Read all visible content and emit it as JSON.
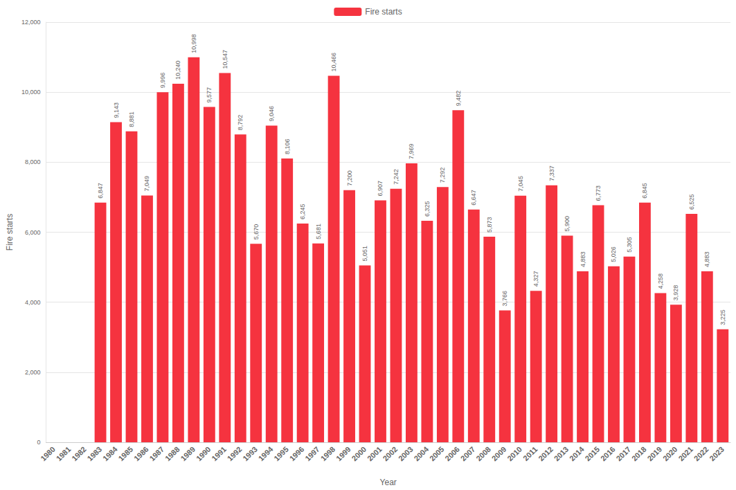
{
  "chart_data": {
    "type": "bar",
    "x_label": "Year",
    "y_label": "Fire starts",
    "categories": [
      "1980",
      "1981",
      "1982",
      "1983",
      "1984",
      "1985",
      "1986",
      "1987",
      "1988",
      "1989",
      "1990",
      "1991",
      "1992",
      "1993",
      "1994",
      "1995",
      "1996",
      "1997",
      "1998",
      "1999",
      "2000",
      "2001",
      "2002",
      "2003",
      "2004",
      "2005",
      "2006",
      "2007",
      "2008",
      "2009",
      "2010",
      "2011",
      "2012",
      "2013",
      "2014",
      "2015",
      "2016",
      "2017",
      "2018",
      "2019",
      "2020",
      "2021",
      "2022",
      "2023"
    ],
    "series": [
      {
        "name": "Fire starts",
        "color": "#f5333f",
        "values": [
          null,
          null,
          null,
          6847,
          9143,
          8881,
          7049,
          9996,
          10240,
          10998,
          9577,
          10547,
          8792,
          5670,
          9046,
          8106,
          6245,
          5681,
          10466,
          7200,
          5051,
          6907,
          7242,
          7969,
          6325,
          7292,
          9482,
          6647,
          5873,
          3766,
          7045,
          4327,
          7337,
          5900,
          4883,
          6773,
          5026,
          5305,
          6845,
          4258,
          3928,
          6525,
          4883,
          3225
        ],
        "value_labels": [
          null,
          null,
          null,
          "6,847",
          "9,143",
          "8,881",
          "7,049",
          "9,996",
          "10,240",
          "10,998",
          "9,577",
          "10,547",
          "8,792",
          "5,670",
          "9,046",
          "8,106",
          "6,245",
          "5,681",
          "10,466",
          "7,200",
          "5,051",
          "6,907",
          "7,242",
          "7,969",
          "6,325",
          "7,292",
          "9,482",
          "6,647",
          "5,873",
          "3,766",
          "7,045",
          "4,327",
          "7,337",
          "5,900",
          "4,883",
          "6,773",
          "5,026",
          "5,305",
          "6,845",
          "4,258",
          "3,928",
          "6,525",
          "4,883",
          "3,225"
        ]
      }
    ],
    "ylim": [
      0,
      12000
    ],
    "yticks": [
      0,
      {
        "value": 2000,
        "label": "2,000"
      },
      {
        "value": 4000,
        "label": "4,000"
      },
      {
        "value": 6000,
        "label": "6,000"
      },
      {
        "value": 8000,
        "label": "8,000"
      },
      {
        "value": 10000,
        "label": "10,000"
      },
      {
        "value": 12000,
        "label": "12,000"
      }
    ],
    "grid": true,
    "legend": "top",
    "data_labels": true
  }
}
